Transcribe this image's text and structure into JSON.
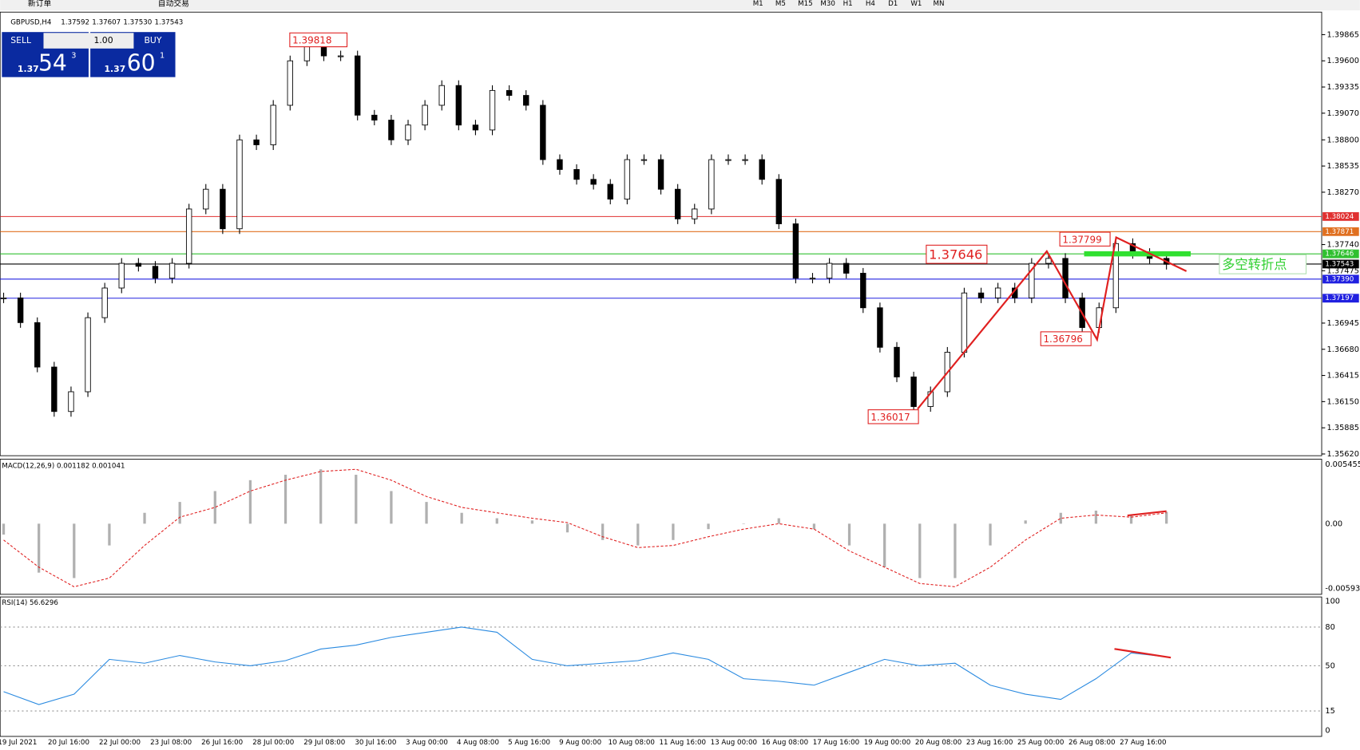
{
  "toolbar": {
    "new_order": "新订单",
    "auto_trade": "自动交易",
    "timeframes": [
      "M1",
      "M5",
      "M15",
      "M30",
      "H1",
      "H4",
      "D1",
      "W1",
      "MN"
    ]
  },
  "trade_panel": {
    "sell": "SELL",
    "lots": "1.00",
    "buy": "BUY",
    "sell_prefix": "1.37",
    "sell_big": "54",
    "sell_sup": "3",
    "buy_prefix": "1.37",
    "buy_big": "60",
    "buy_sup": "1"
  },
  "price": {
    "header": {
      "symbol": "GBPUSD,H4",
      "open": "1.37592",
      "high": "1.37607",
      "low": "1.37530",
      "close": "1.37543"
    },
    "ylim": [
      1.3562,
      1.39865
    ],
    "yticks": [
      {
        "value": 1.39865,
        "label": "1.39865"
      },
      {
        "value": 1.396,
        "label": "1.39600"
      },
      {
        "value": 1.39335,
        "label": "1.39335"
      },
      {
        "value": 1.3907,
        "label": "1.39070"
      },
      {
        "value": 1.388,
        "label": "1.38800"
      },
      {
        "value": 1.38535,
        "label": "1.38535"
      },
      {
        "value": 1.3827,
        "label": "1.38270"
      },
      {
        "value": 1.3774,
        "label": "1.37740"
      },
      {
        "value": 1.37475,
        "label": "1.37475"
      },
      {
        "value": 1.36945,
        "label": "1.36945"
      },
      {
        "value": 1.3668,
        "label": "1.36680"
      },
      {
        "value": 1.36415,
        "label": "1.36415"
      },
      {
        "value": 1.3615,
        "label": "1.36150"
      },
      {
        "value": 1.35885,
        "label": "1.35885"
      },
      {
        "value": 1.3562,
        "label": "1.35620"
      }
    ],
    "levels": [
      {
        "value": 1.38024,
        "label": "1.38024",
        "color": "#e03030"
      },
      {
        "value": 1.37871,
        "label": "1.37871",
        "color": "#e07020"
      },
      {
        "value": 1.37646,
        "label": "1.37646",
        "color": "#30c030"
      },
      {
        "value": 1.37543,
        "label": "1.37543",
        "color": "#000000"
      },
      {
        "value": 1.3739,
        "label": "1.37390",
        "color": "#2020e0"
      },
      {
        "value": 1.37197,
        "label": "1.37197",
        "color": "#2020e0"
      }
    ],
    "closes": [
      1.372,
      1.3695,
      1.365,
      1.3605,
      1.3625,
      1.37,
      1.373,
      1.3755,
      1.3752,
      1.374,
      1.3755,
      1.381,
      1.383,
      1.379,
      1.388,
      1.3875,
      1.3915,
      1.396,
      1.3975,
      1.3965,
      1.3965,
      1.3905,
      1.39,
      1.388,
      1.3895,
      1.3915,
      1.3935,
      1.3895,
      1.389,
      1.393,
      1.3925,
      1.3915,
      1.386,
      1.385,
      1.384,
      1.3835,
      1.382,
      1.386,
      1.386,
      1.383,
      1.38,
      1.381,
      1.386,
      1.386,
      1.386,
      1.384,
      1.3795,
      1.374,
      1.374,
      1.3755,
      1.3745,
      1.371,
      1.367,
      1.364,
      1.361,
      1.3625,
      1.3665,
      1.3725,
      1.372,
      1.373,
      1.372,
      1.3755,
      1.376,
      1.372,
      1.369,
      1.371,
      1.3775,
      1.3765,
      1.376,
      1.3754
    ],
    "annotations": [
      "1.39818",
      "1.37646",
      "1.37799",
      "1.36796",
      "1.36017",
      "多空转折点"
    ]
  },
  "macd": {
    "header": "MACD(12,26,9) 0.001182 0.001041",
    "ylim": [
      -0.005938,
      0.005455
    ],
    "yticks": [
      0.005455,
      {
        "value": 0,
        "label": "0.00"
      },
      -0.005938
    ],
    "main": [
      -0.001,
      -0.0045,
      -0.005,
      -0.002,
      0.001,
      0.002,
      0.003,
      0.004,
      0.0045,
      0.005,
      0.0045,
      0.003,
      0.002,
      0.001,
      0.0005,
      0.0003,
      -0.0008,
      -0.0015,
      -0.002,
      -0.0015,
      -0.0005,
      0,
      0.0005,
      -0.0005,
      -0.002,
      -0.004,
      -0.005,
      -0.005,
      -0.002,
      0.0003,
      0.001,
      0.0012,
      0.0008,
      0.0011
    ],
    "signal": [
      -0.0015,
      -0.004,
      -0.0058,
      -0.005,
      -0.002,
      0.0006,
      0.0015,
      0.003,
      0.004,
      0.0048,
      0.005,
      0.004,
      0.0025,
      0.0015,
      0.001,
      0.0005,
      0.0001,
      -0.0012,
      -0.0022,
      -0.002,
      -0.0012,
      -0.0005,
      0,
      -0.0005,
      -0.0025,
      -0.004,
      -0.0055,
      -0.0058,
      -0.004,
      -0.0015,
      0.0005,
      0.0008,
      0.0006,
      0.001
    ]
  },
  "rsi": {
    "header": "RSI(14) 56.6296",
    "ylim": [
      0,
      100
    ],
    "yticks": [
      100,
      80,
      50,
      15,
      0
    ],
    "levels": [
      80,
      50,
      15
    ],
    "values": [
      30,
      20,
      28,
      55,
      52,
      58,
      53,
      50,
      54,
      63,
      66,
      72,
      76,
      80,
      76,
      55,
      50,
      52,
      54,
      60,
      55,
      40,
      38,
      35,
      45,
      55,
      50,
      52,
      35,
      28,
      24,
      40,
      60,
      57
    ]
  },
  "time_axis": [
    "19 Jul 2021",
    "20 Jul 16:00",
    "22 Jul 00:00",
    "23 Jul 08:00",
    "26 Jul 16:00",
    "28 Jul 00:00",
    "29 Jul 08:00",
    "30 Jul 16:00",
    "3 Aug 00:00",
    "4 Aug 08:00",
    "5 Aug 16:00",
    "9 Aug 00:00",
    "10 Aug 08:00",
    "11 Aug 16:00",
    "13 Aug 00:00",
    "16 Aug 08:00",
    "17 Aug 16:00",
    "19 Aug 00:00",
    "20 Aug 08:00",
    "23 Aug 16:00",
    "25 Aug 00:00",
    "26 Aug 08:00",
    "27 Aug 16:00"
  ]
}
